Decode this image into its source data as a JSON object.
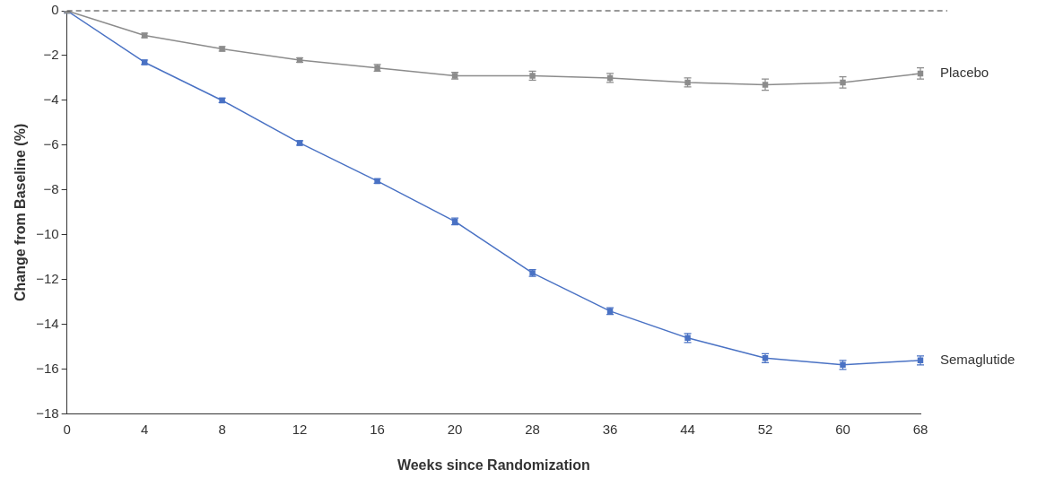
{
  "chart_data": {
    "type": "line",
    "xlabel": "Weeks since Randomization",
    "ylabel": "Change from Baseline (%)",
    "categories": [
      "0",
      "4",
      "8",
      "12",
      "16",
      "20",
      "28",
      "36",
      "44",
      "52",
      "60",
      "68"
    ],
    "series": [
      {
        "name": "Placebo",
        "color": "#8c8c8c",
        "values": [
          0,
          -1.1,
          -1.7,
          -2.2,
          -2.55,
          -2.9,
          -2.9,
          -3.0,
          -3.2,
          -3.3,
          -3.2,
          -2.8
        ],
        "errors": [
          null,
          0.1,
          0.1,
          0.1,
          0.15,
          0.15,
          0.2,
          0.2,
          0.2,
          0.25,
          0.25,
          0.25
        ]
      },
      {
        "name": "Semaglutide",
        "color": "#4a72c4",
        "values": [
          0,
          -2.3,
          -4.0,
          -5.9,
          -7.6,
          -9.4,
          -11.7,
          -13.4,
          -14.6,
          -15.5,
          -15.8,
          -15.6
        ],
        "errors": [
          null,
          0.1,
          0.1,
          0.1,
          0.1,
          0.15,
          0.15,
          0.15,
          0.2,
          0.2,
          0.2,
          0.2
        ]
      }
    ],
    "ylim": [
      -18,
      0
    ],
    "yticks": [
      -18,
      -16,
      -14,
      -12,
      -10,
      -8,
      -6,
      -4,
      -2,
      0
    ],
    "ref_lines": [
      {
        "axis": "y",
        "value": 0,
        "line_style": "dashed",
        "color": "#333333"
      }
    ],
    "grid": false,
    "legend": false,
    "marker": "square",
    "line_style": "solid"
  }
}
